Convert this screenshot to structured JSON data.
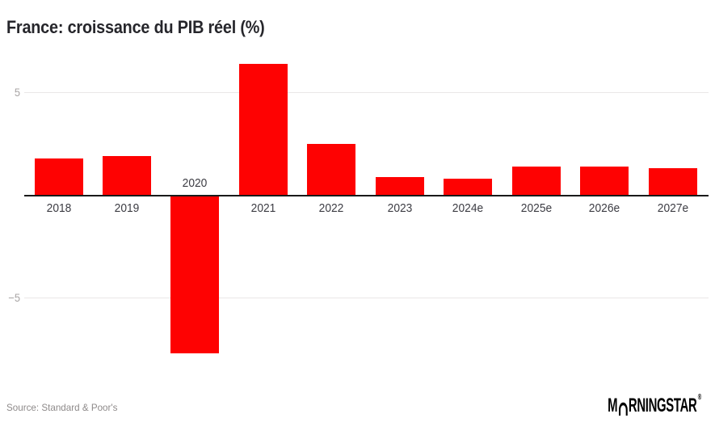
{
  "source": "Source: Standard & Poor's",
  "logo": {
    "m": "M",
    "rest": "RNINGSTAR",
    "registered": "®"
  },
  "colors": {
    "bar": "#fe0202",
    "title": "#26262b",
    "axis": "#1a1a1a",
    "gridline": "#eae7e7",
    "tick_label": "#a8a4a4",
    "year_label": "#3d3d44",
    "source": "#8e8a8a",
    "background": "#ffffff",
    "logo": "#000000"
  },
  "chart_data": {
    "type": "bar",
    "title": "France: croissance du PIB réel (%)",
    "categories": [
      "2018",
      "2019",
      "2020",
      "2021",
      "2022",
      "2023",
      "2024e",
      "2025e",
      "2026e",
      "2027e"
    ],
    "values": [
      1.8,
      1.9,
      -7.7,
      6.4,
      2.5,
      0.9,
      0.8,
      1.4,
      1.4,
      1.3
    ],
    "unit": "%",
    "xlabel": "",
    "ylabel": "",
    "yticks": [
      5,
      -5
    ],
    "ylim": [
      -9,
      7.2
    ],
    "grid": true,
    "legend": false,
    "color": "#fe0202"
  }
}
